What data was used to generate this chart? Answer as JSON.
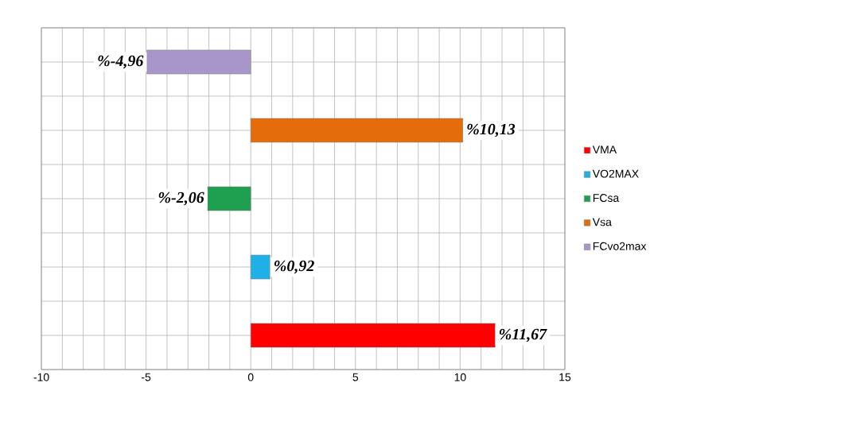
{
  "chart_data": {
    "type": "bar",
    "orientation": "horizontal",
    "categories": [
      null
    ],
    "series": [
      {
        "name": "VMA",
        "color": "#ff0000",
        "values": [
          11.67
        ],
        "value_labels": [
          "%11,67"
        ]
      },
      {
        "name": "VO2MAX",
        "color": "#1fb0e8",
        "values": [
          0.92
        ],
        "value_labels": [
          "%0,92"
        ]
      },
      {
        "name": "FCsa",
        "color": "#1fa050",
        "values": [
          -2.06
        ],
        "value_labels": [
          "%-2,06"
        ]
      },
      {
        "name": "Vsa",
        "color": "#e46c0a",
        "values": [
          10.13
        ],
        "value_labels": [
          "%10,13"
        ]
      },
      {
        "name": "FCvo2max",
        "color": "#a896c8",
        "values": [
          -4.96
        ],
        "value_labels": [
          "%-4,96"
        ]
      }
    ],
    "xlim": [
      -10,
      15
    ],
    "xticks": [
      -10,
      {
        "value": -9,
        "label": null
      },
      {
        "value": -8,
        "label": null
      },
      {
        "value": -7,
        "label": null
      },
      {
        "value": -6,
        "label": null
      },
      -5,
      {
        "value": -4,
        "label": null
      },
      {
        "value": -3,
        "label": null
      },
      {
        "value": -2,
        "label": null
      },
      {
        "value": -1,
        "label": null
      },
      0,
      {
        "value": 1,
        "label": null
      },
      {
        "value": 2,
        "label": null
      },
      {
        "value": 3,
        "label": null
      },
      {
        "value": 4,
        "label": null
      },
      5,
      {
        "value": 6,
        "label": null
      },
      {
        "value": 7,
        "label": null
      },
      {
        "value": 8,
        "label": null
      },
      {
        "value": 9,
        "label": null
      },
      10,
      {
        "value": 11,
        "label": null
      },
      {
        "value": 12,
        "label": null
      },
      {
        "value": 13,
        "label": null
      },
      {
        "value": 14,
        "label": null
      },
      15
    ],
    "grid": true,
    "legend": "right"
  }
}
